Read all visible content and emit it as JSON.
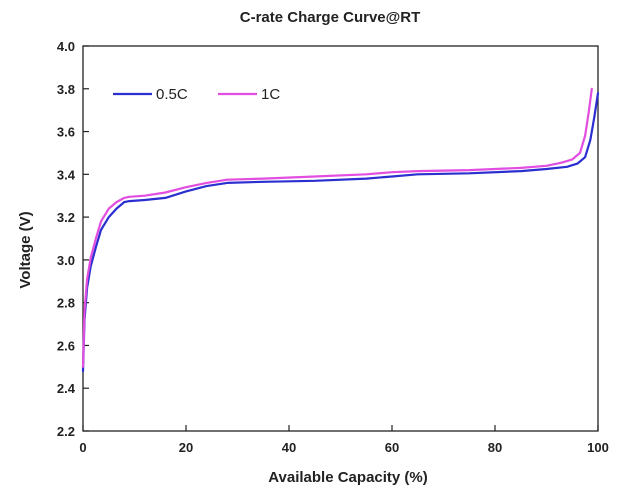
{
  "chart_data": {
    "type": "line",
    "title": "C-rate  Charge Curve@RT",
    "xlabel": "Available Capacity (%)",
    "ylabel": "Voltage (V)",
    "xlim": [
      0,
      100
    ],
    "ylim": [
      2.2,
      4.0
    ],
    "x_ticks": [
      0,
      20,
      40,
      60,
      80,
      100
    ],
    "y_ticks": [
      2.2,
      2.4,
      2.6,
      2.8,
      3.0,
      3.2,
      3.4,
      3.6,
      3.8,
      4.0
    ],
    "x_tick_labels": [
      "0",
      "20",
      "40",
      "60",
      "80",
      "100"
    ],
    "y_tick_labels": [
      "2.2",
      "2.4",
      "2.6",
      "2.8",
      "3.0",
      "3.2",
      "3.4",
      "3.6",
      "3.8",
      "4.0"
    ],
    "grid": false,
    "legend_position": "top-left",
    "series": [
      {
        "name": "0.5C",
        "color": "#2b2fd0",
        "x": [
          0,
          0.3,
          0.8,
          1.5,
          2.5,
          3.5,
          5,
          6.5,
          8,
          9,
          12,
          16,
          20,
          24,
          28,
          35,
          45,
          55,
          60,
          65,
          75,
          85,
          90,
          94,
          96,
          97.5,
          98.5,
          99.3,
          100
        ],
        "y": [
          2.48,
          2.72,
          2.87,
          2.97,
          3.06,
          3.14,
          3.2,
          3.24,
          3.27,
          3.275,
          3.28,
          3.29,
          3.32,
          3.345,
          3.36,
          3.365,
          3.37,
          3.38,
          3.39,
          3.4,
          3.405,
          3.415,
          3.425,
          3.435,
          3.45,
          3.48,
          3.56,
          3.67,
          3.78
        ]
      },
      {
        "name": "1C",
        "color": "#e24ee0",
        "x": [
          0,
          0.3,
          0.8,
          1.5,
          2.5,
          3.5,
          5,
          6.5,
          8,
          9,
          12,
          16,
          20,
          24,
          28,
          35,
          45,
          55,
          60,
          65,
          75,
          85,
          90,
          93,
          95,
          96.5,
          97.5,
          98.2,
          98.8
        ],
        "y": [
          2.5,
          2.76,
          2.91,
          3.01,
          3.1,
          3.18,
          3.24,
          3.27,
          3.29,
          3.295,
          3.3,
          3.315,
          3.34,
          3.36,
          3.375,
          3.38,
          3.39,
          3.4,
          3.41,
          3.415,
          3.42,
          3.43,
          3.44,
          3.455,
          3.47,
          3.5,
          3.58,
          3.69,
          3.8
        ]
      }
    ]
  }
}
